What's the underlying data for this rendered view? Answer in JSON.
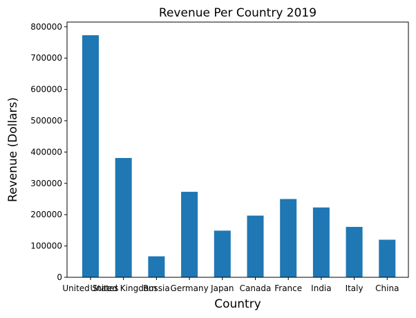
{
  "chart_data": {
    "type": "bar",
    "title": "Revenue Per Country 2019",
    "xlabel": "Country",
    "ylabel": "Revenue (Dollars)",
    "categories": [
      "United States",
      "United Kingdom",
      "Russia",
      "Germany",
      "Japan",
      "Canada",
      "France",
      "India",
      "Italy",
      "China"
    ],
    "values": [
      773000,
      381000,
      67000,
      273000,
      149000,
      197000,
      250000,
      223000,
      161000,
      120000
    ],
    "ylim": [
      0,
      815000
    ],
    "yticks": [
      0,
      100000,
      200000,
      300000,
      400000,
      500000,
      600000,
      700000,
      800000
    ],
    "bar_color": "#1f77b4",
    "grid": false,
    "legend": "none"
  }
}
